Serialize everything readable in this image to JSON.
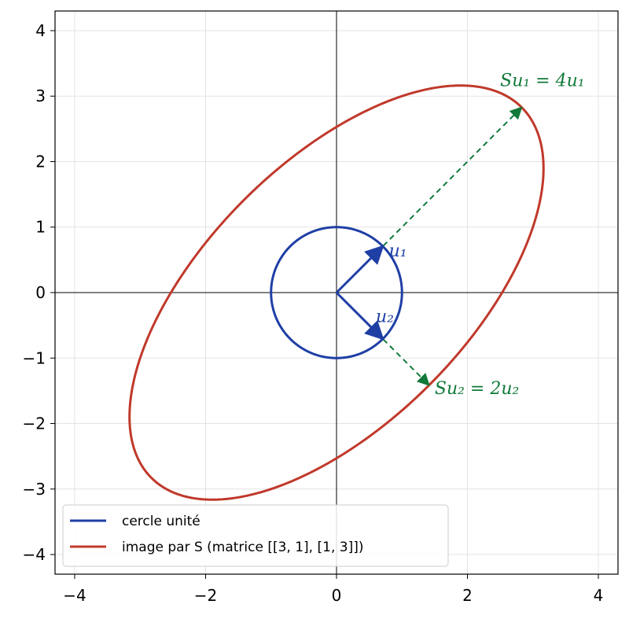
{
  "chart_data": {
    "type": "line",
    "title": "",
    "xlabel": "",
    "ylabel": "",
    "xlim": [
      -4.3,
      4.3
    ],
    "ylim": [
      -4.3,
      4.3
    ],
    "xticks": [
      -4,
      -2,
      0,
      2,
      4
    ],
    "yticks": [
      -4,
      -3,
      -2,
      -1,
      0,
      1,
      2,
      3,
      4
    ],
    "xtick_labels": [
      "−4",
      "−2",
      "0",
      "2",
      "4"
    ],
    "ytick_labels": [
      "−4",
      "−3",
      "−2",
      "−1",
      "0",
      "1",
      "2",
      "3",
      "4"
    ],
    "grid": true,
    "aspect": "equal",
    "matrix": [
      [
        3,
        1
      ],
      [
        1,
        3
      ]
    ],
    "series": [
      {
        "name": "cercle unité",
        "kind": "unit-circle",
        "color": "#1f3fa5"
      },
      {
        "name": "image par S (matrice [[3, 1], [1, 3]])",
        "kind": "image-ellipse",
        "color": "#c0392b"
      }
    ],
    "vectors": [
      {
        "label": "u₁",
        "from": [
          0,
          0
        ],
        "to": [
          0.707,
          0.707
        ],
        "style": "solid",
        "color": "#1f3fa5"
      },
      {
        "label": "u₂",
        "from": [
          0,
          0
        ],
        "to": [
          0.707,
          -0.707
        ],
        "style": "solid",
        "color": "#1f3fa5"
      },
      {
        "label": "Su₁ = 4u₁",
        "from": [
          0,
          0
        ],
        "to": [
          2.828,
          2.828
        ],
        "style": "dashed",
        "color": "#117a3a"
      },
      {
        "label": "Su₂ = 2u₂",
        "from": [
          0,
          0
        ],
        "to": [
          1.414,
          -1.414
        ],
        "style": "dashed",
        "color": "#117a3a"
      }
    ],
    "annotations": [
      {
        "text": "u₁",
        "x": 0.8,
        "y": 0.55,
        "color": "#1f3fa5"
      },
      {
        "text": "u₂",
        "x": 0.6,
        "y": -0.45,
        "color": "#1f3fa5"
      },
      {
        "text": "Su₁ = 4u₁",
        "x": 2.5,
        "y": 3.15,
        "color": "#117a3a"
      },
      {
        "text": "Su₂ = 2u₂",
        "x": 1.5,
        "y": -1.55,
        "color": "#117a3a"
      }
    ],
    "legend": {
      "placement": "lower-left",
      "entries": [
        "cercle unité",
        "image par S (matrice [[3, 1], [1, 3]])"
      ]
    }
  }
}
